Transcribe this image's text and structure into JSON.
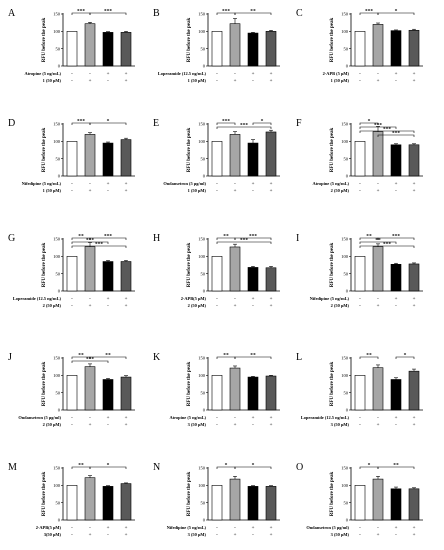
{
  "chart_data": [
    {
      "panel": "A",
      "type": "bar",
      "ylabel": "RFU before the peak",
      "ylim": [
        0,
        150
      ],
      "yticks": [
        0,
        50,
        100,
        150
      ],
      "values": [
        100,
        122,
        97,
        97
      ],
      "errors": [
        0,
        4,
        2,
        3
      ],
      "bar_colors": [
        "#ffffff",
        "#a6a6a6",
        "#000000",
        "#595959"
      ],
      "significance": [
        {
          "from": 1,
          "to": 2,
          "label": "***",
          "level": 0
        },
        {
          "from": 2,
          "to": 4,
          "label": "***",
          "level": 0
        }
      ],
      "conditions": [
        {
          "label": "Atropine (5 ng/mL)",
          "signs": [
            "-",
            "-",
            "+",
            "+"
          ]
        },
        {
          "label": "1 (50 μM)",
          "signs": [
            "-",
            "+",
            "-",
            "+"
          ]
        }
      ]
    },
    {
      "panel": "B",
      "type": "bar",
      "ylabel": "RFU before the peak",
      "ylim": [
        0,
        150
      ],
      "yticks": [
        0,
        50,
        100,
        150
      ],
      "values": [
        100,
        122,
        95,
        100
      ],
      "errors": [
        0,
        15,
        2,
        3
      ],
      "bar_colors": [
        "#ffffff",
        "#a6a6a6",
        "#000000",
        "#595959"
      ],
      "significance": [
        {
          "from": 1,
          "to": 2,
          "label": "***",
          "level": 0
        },
        {
          "from": 2,
          "to": 4,
          "label": "**",
          "level": 0
        }
      ],
      "conditions": [
        {
          "label": "Loperamide (12.5 ng/mL)",
          "signs": [
            "-",
            "-",
            "+",
            "+"
          ]
        },
        {
          "label": "1 (50 μM)",
          "signs": [
            "-",
            "+",
            "-",
            "+"
          ]
        }
      ]
    },
    {
      "panel": "C",
      "type": "bar",
      "ylabel": "RFU before the peak",
      "ylim": [
        0,
        150
      ],
      "yticks": [
        0,
        50,
        100,
        150
      ],
      "values": [
        100,
        120,
        102,
        103
      ],
      "errors": [
        0,
        4,
        2,
        3
      ],
      "bar_colors": [
        "#ffffff",
        "#a6a6a6",
        "#000000",
        "#595959"
      ],
      "significance": [
        {
          "from": 1,
          "to": 2,
          "label": "***",
          "level": 0
        },
        {
          "from": 2,
          "to": 4,
          "label": "*",
          "level": 0
        }
      ],
      "conditions": [
        {
          "label": "2-APB (5 μM)",
          "signs": [
            "-",
            "-",
            "+",
            "+"
          ]
        },
        {
          "label": "1 (50 μM)",
          "signs": [
            "-",
            "+",
            "-",
            "+"
          ]
        }
      ]
    },
    {
      "panel": "D",
      "type": "bar",
      "ylabel": "RFU before the peak",
      "ylim": [
        0,
        150
      ],
      "yticks": [
        0,
        50,
        100,
        150
      ],
      "values": [
        100,
        120,
        95,
        105
      ],
      "errors": [
        0,
        5,
        3,
        4
      ],
      "bar_colors": [
        "#ffffff",
        "#a6a6a6",
        "#000000",
        "#595959"
      ],
      "significance": [
        {
          "from": 1,
          "to": 2,
          "label": "***",
          "level": 0
        },
        {
          "from": 2,
          "to": 4,
          "label": "*",
          "level": 0
        }
      ],
      "conditions": [
        {
          "label": "Nifedipine (5 ng/mL)",
          "signs": [
            "-",
            "-",
            "+",
            "+"
          ]
        },
        {
          "label": "1 (50 μM)",
          "signs": [
            "-",
            "+",
            "-",
            "+"
          ]
        }
      ]
    },
    {
      "panel": "E",
      "type": "bar",
      "ylabel": "RFU before the peak",
      "ylim": [
        0,
        150
      ],
      "yticks": [
        0,
        50,
        100,
        150
      ],
      "values": [
        100,
        120,
        95,
        127
      ],
      "errors": [
        0,
        8,
        10,
        5
      ],
      "bar_colors": [
        "#ffffff",
        "#a6a6a6",
        "#000000",
        "#595959"
      ],
      "significance": [
        {
          "from": 1,
          "to": 2,
          "label": "***",
          "level": 0
        },
        {
          "from": 3,
          "to": 4,
          "label": "*",
          "level": 0
        },
        {
          "from": 1,
          "to": 4,
          "label": "***",
          "level": 1
        }
      ],
      "conditions": [
        {
          "label": "Ondansetron (5 μg/ml)",
          "signs": [
            "-",
            "-",
            "+",
            "+"
          ]
        },
        {
          "label": "1 (50 μM)",
          "signs": [
            "-",
            "+",
            "-",
            "+"
          ]
        }
      ]
    },
    {
      "panel": "F",
      "type": "bar",
      "ylabel": "RFU before the peak",
      "ylim": [
        0,
        150
      ],
      "yticks": [
        0,
        50,
        100,
        150
      ],
      "values": [
        100,
        128,
        90,
        90
      ],
      "errors": [
        0,
        15,
        3,
        3
      ],
      "bar_colors": [
        "#ffffff",
        "#a6a6a6",
        "#000000",
        "#595959"
      ],
      "significance": [
        {
          "from": 1,
          "to": 2,
          "label": "*",
          "level": 0
        },
        {
          "from": 1,
          "to": 3,
          "label": "***",
          "level": 1
        },
        {
          "from": 1,
          "to": 4,
          "label": "***",
          "level": 2
        },
        {
          "from": 2,
          "to": 4,
          "label": "***",
          "level": 3
        }
      ],
      "conditions": [
        {
          "label": "Atropine (5 ng/mL)",
          "signs": [
            "-",
            "-",
            "+",
            "+"
          ]
        },
        {
          "label": "2 (50 μM)",
          "signs": [
            "-",
            "+",
            "-",
            "+"
          ]
        }
      ]
    },
    {
      "panel": "G",
      "type": "bar",
      "ylabel": "RFU before the peak",
      "ylim": [
        0,
        150
      ],
      "yticks": [
        0,
        50,
        100,
        150
      ],
      "values": [
        100,
        128,
        85,
        85
      ],
      "errors": [
        0,
        12,
        3,
        3
      ],
      "bar_colors": [
        "#ffffff",
        "#a6a6a6",
        "#000000",
        "#595959"
      ],
      "significance": [
        {
          "from": 1,
          "to": 2,
          "label": "**",
          "level": 0
        },
        {
          "from": 2,
          "to": 4,
          "label": "***",
          "level": 0
        },
        {
          "from": 1,
          "to": 3,
          "label": "***",
          "level": 1
        },
        {
          "from": 1,
          "to": 4,
          "label": "***",
          "level": 2
        }
      ],
      "conditions": [
        {
          "label": "Loperamide (12.5 ng/mL)",
          "signs": [
            "-",
            "-",
            "+",
            "+"
          ]
        },
        {
          "label": "2 (50 μM)",
          "signs": [
            "-",
            "+",
            "-",
            "+"
          ]
        }
      ]
    },
    {
      "panel": "H",
      "type": "bar",
      "ylabel": "RFU before the peak",
      "ylim": [
        0,
        150
      ],
      "yticks": [
        0,
        50,
        100,
        150
      ],
      "values": [
        100,
        127,
        68,
        67
      ],
      "errors": [
        0,
        8,
        3,
        4
      ],
      "bar_colors": [
        "#ffffff",
        "#a6a6a6",
        "#000000",
        "#595959"
      ],
      "significance": [
        {
          "from": 1,
          "to": 2,
          "label": "**",
          "level": 0
        },
        {
          "from": 2,
          "to": 4,
          "label": "***",
          "level": 0
        },
        {
          "from": 1,
          "to": 4,
          "label": "***",
          "level": 1
        }
      ],
      "conditions": [
        {
          "label": "2-APB(5 μM)",
          "signs": [
            "-",
            "-",
            "+",
            "+"
          ]
        },
        {
          "label": "2 (50 μM)",
          "signs": [
            "-",
            "+",
            "-",
            "+"
          ]
        }
      ]
    },
    {
      "panel": "I",
      "type": "bar",
      "ylabel": "RFU before the peak",
      "ylim": [
        0,
        150
      ],
      "yticks": [
        0,
        50,
        100,
        150
      ],
      "values": [
        100,
        128,
        77,
        78
      ],
      "errors": [
        0,
        8,
        3,
        3
      ],
      "bar_colors": [
        "#ffffff",
        "#a6a6a6",
        "#000000",
        "#595959"
      ],
      "significance": [
        {
          "from": 1,
          "to": 2,
          "label": "**",
          "level": 0
        },
        {
          "from": 2,
          "to": 4,
          "label": "***",
          "level": 0
        },
        {
          "from": 1,
          "to": 3,
          "label": "**",
          "level": 1
        },
        {
          "from": 1,
          "to": 4,
          "label": "***",
          "level": 2
        }
      ],
      "conditions": [
        {
          "label": "Nifedipine (5 ng/mL)",
          "signs": [
            "-",
            "-",
            "+",
            "+"
          ]
        },
        {
          "label": "2 (50 μM)",
          "signs": [
            "-",
            "+",
            "-",
            "+"
          ]
        }
      ]
    },
    {
      "panel": "J",
      "type": "bar",
      "ylabel": "RFU before the peak",
      "ylim": [
        0,
        150
      ],
      "yticks": [
        0,
        50,
        100,
        150
      ],
      "values": [
        100,
        125,
        88,
        95
      ],
      "errors": [
        0,
        8,
        3,
        4
      ],
      "bar_colors": [
        "#ffffff",
        "#a6a6a6",
        "#000000",
        "#595959"
      ],
      "significance": [
        {
          "from": 1,
          "to": 2,
          "label": "**",
          "level": 0
        },
        {
          "from": 2,
          "to": 4,
          "label": "**",
          "level": 0
        },
        {
          "from": 1,
          "to": 3,
          "label": "***",
          "level": 1
        }
      ],
      "conditions": [
        {
          "label": "Ondansetron (5 μg/ml)",
          "signs": [
            "-",
            "-",
            "+",
            "+"
          ]
        },
        {
          "label": "2 (50 μM)",
          "signs": [
            "-",
            "+",
            "-",
            "+"
          ]
        }
      ]
    },
    {
      "panel": "K",
      "type": "bar",
      "ylabel": "RFU before the peak",
      "ylim": [
        0,
        150
      ],
      "yticks": [
        0,
        50,
        100,
        150
      ],
      "values": [
        100,
        121,
        95,
        98
      ],
      "errors": [
        0,
        6,
        2,
        2
      ],
      "bar_colors": [
        "#ffffff",
        "#a6a6a6",
        "#000000",
        "#595959"
      ],
      "significance": [
        {
          "from": 1,
          "to": 2,
          "label": "**",
          "level": 0
        },
        {
          "from": 2,
          "to": 4,
          "label": "**",
          "level": 0
        }
      ],
      "conditions": [
        {
          "label": "Atropine (5 ng/mL)",
          "signs": [
            "-",
            "-",
            "+",
            "+"
          ]
        },
        {
          "label": "3 (50 μM)",
          "signs": [
            "-",
            "+",
            "-",
            "+"
          ]
        }
      ]
    },
    {
      "panel": "L",
      "type": "bar",
      "ylabel": "RFU before the peak",
      "ylim": [
        0,
        150
      ],
      "yticks": [
        0,
        50,
        100,
        150
      ],
      "values": [
        100,
        122,
        88,
        112
      ],
      "errors": [
        0,
        8,
        5,
        6
      ],
      "bar_colors": [
        "#ffffff",
        "#a6a6a6",
        "#000000",
        "#595959"
      ],
      "significance": [
        {
          "from": 1,
          "to": 2,
          "label": "**",
          "level": 0
        },
        {
          "from": 3,
          "to": 4,
          "label": "*",
          "level": 0
        }
      ],
      "conditions": [
        {
          "label": "Loperamide (12.5 ng/mL)",
          "signs": [
            "-",
            "-",
            "+",
            "+"
          ]
        },
        {
          "label": "3 (50 μM)",
          "signs": [
            "-",
            "+",
            "-",
            "+"
          ]
        }
      ]
    },
    {
      "panel": "M",
      "type": "bar",
      "ylabel": "RFU before the peak",
      "ylim": [
        0,
        150
      ],
      "yticks": [
        0,
        50,
        100,
        150
      ],
      "values": [
        100,
        122,
        97,
        105
      ],
      "errors": [
        0,
        6,
        2,
        2
      ],
      "bar_colors": [
        "#ffffff",
        "#a6a6a6",
        "#000000",
        "#595959"
      ],
      "significance": [
        {
          "from": 1,
          "to": 2,
          "label": "**",
          "level": 0
        },
        {
          "from": 2,
          "to": 4,
          "label": "*",
          "level": 0
        }
      ],
      "conditions": [
        {
          "label": "2-APB(5 μM)",
          "signs": [
            "-",
            "-",
            "+",
            "+"
          ]
        },
        {
          "label": "3(50 μM)",
          "signs": [
            "-",
            "+",
            "-",
            "+"
          ]
        }
      ]
    },
    {
      "panel": "N",
      "type": "bar",
      "ylabel": "RFU before the peak",
      "ylim": [
        0,
        150
      ],
      "yticks": [
        0,
        50,
        100,
        150
      ],
      "values": [
        100,
        118,
        97,
        97
      ],
      "errors": [
        0,
        8,
        2,
        2
      ],
      "bar_colors": [
        "#ffffff",
        "#a6a6a6",
        "#000000",
        "#595959"
      ],
      "significance": [
        {
          "from": 1,
          "to": 2,
          "label": "*",
          "level": 0
        },
        {
          "from": 2,
          "to": 4,
          "label": "*",
          "level": 0
        }
      ],
      "conditions": [
        {
          "label": "Nifedipine (5 ng/mL)",
          "signs": [
            "-",
            "-",
            "+",
            "+"
          ]
        },
        {
          "label": "3 (50 μM)",
          "signs": [
            "-",
            "+",
            "-",
            "+"
          ]
        }
      ]
    },
    {
      "panel": "O",
      "type": "bar",
      "ylabel": "RFU before the peak",
      "ylim": [
        0,
        150
      ],
      "yticks": [
        0,
        50,
        100,
        150
      ],
      "values": [
        100,
        118,
        90,
        90
      ],
      "errors": [
        0,
        8,
        5,
        3
      ],
      "bar_colors": [
        "#ffffff",
        "#a6a6a6",
        "#000000",
        "#595959"
      ],
      "significance": [
        {
          "from": 1,
          "to": 2,
          "label": "*",
          "level": 0
        },
        {
          "from": 2,
          "to": 4,
          "label": "**",
          "level": 0
        }
      ],
      "conditions": [
        {
          "label": "Ondansetron (5 μg/ml)",
          "signs": [
            "-",
            "-",
            "+",
            "+"
          ]
        },
        {
          "label": "3 (50 μM)",
          "signs": [
            "-",
            "+",
            "-",
            "+"
          ]
        }
      ]
    }
  ]
}
